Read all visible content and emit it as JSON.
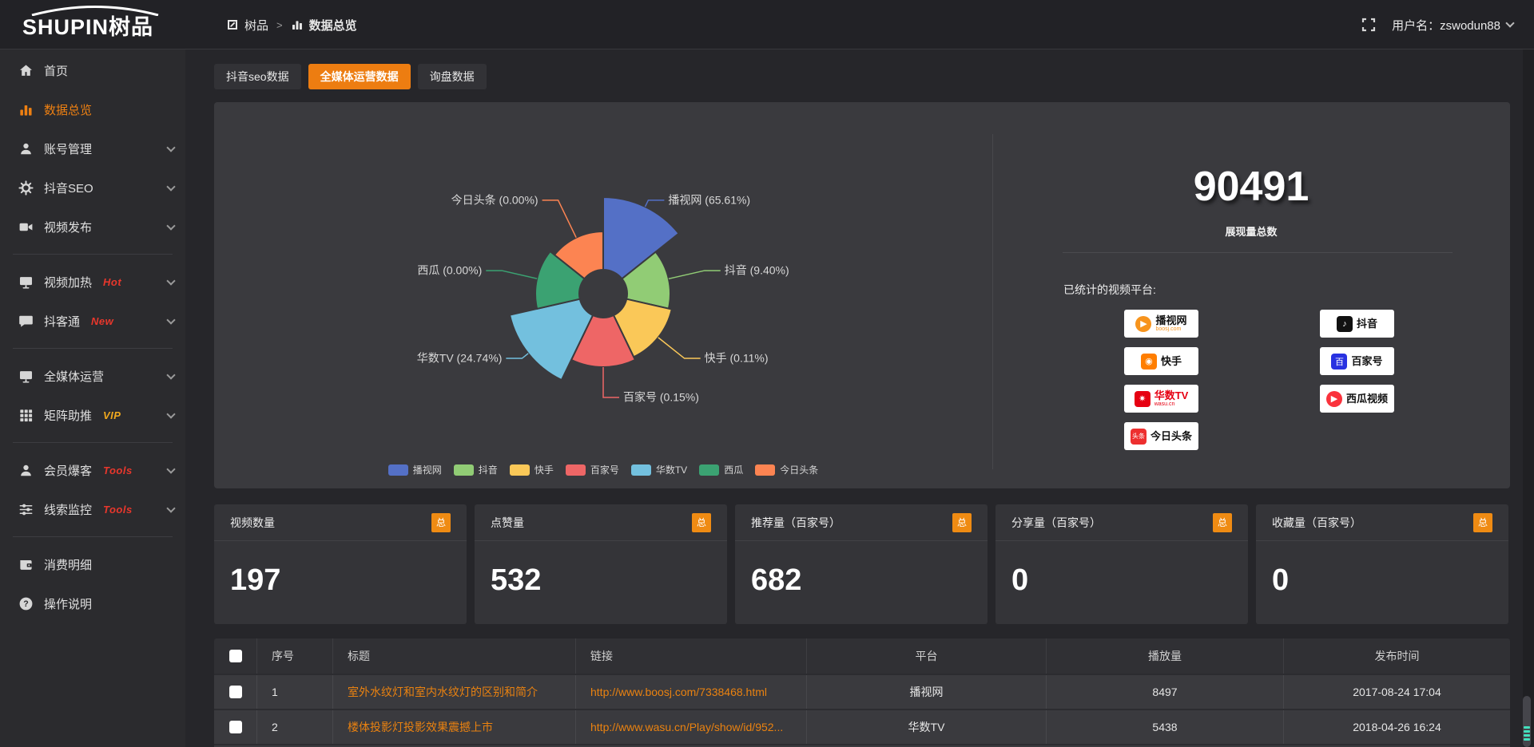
{
  "topbar": {
    "logo_text": "SHUPIN树品",
    "breadcrumb": {
      "home": "树品",
      "separator": ">",
      "current": "数据总览"
    },
    "username": "用户名：zswodun88"
  },
  "sidebar": {
    "items": [
      {
        "icon": "home-icon",
        "label": "首页"
      },
      {
        "icon": "bar-chart-icon",
        "label": "数据总览",
        "active": true
      },
      {
        "icon": "user-icon",
        "label": "账号管理",
        "chevron": true
      },
      {
        "icon": "gear-icon",
        "label": "抖音SEO",
        "chevron": true
      },
      {
        "icon": "video-camera-icon",
        "label": "视频发布",
        "chevron": true,
        "divider_after": true
      },
      {
        "icon": "monitor-icon",
        "label": "视频加热",
        "badge": "Hot",
        "badge_color": "#e8372c",
        "chevron": true
      },
      {
        "icon": "chat-icon",
        "label": "抖客通",
        "badge": "New",
        "badge_color": "#e8372c",
        "chevron": true,
        "divider_after": true
      },
      {
        "icon": "display-icon",
        "label": "全媒体运营",
        "chevron": true
      },
      {
        "icon": "grid-icon",
        "label": "矩阵助推",
        "badge": "VIP",
        "badge_color": "#f0a91e",
        "chevron": true,
        "divider_after": true
      },
      {
        "icon": "person-icon",
        "label": "会员爆客",
        "badge": "Tools",
        "badge_color": "#e8372c",
        "chevron": true
      },
      {
        "icon": "sliders-icon",
        "label": "线索监控",
        "badge": "Tools",
        "badge_color": "#e8372c",
        "chevron": true,
        "divider_after": true
      },
      {
        "icon": "wallet-icon",
        "label": "消费明细"
      },
      {
        "icon": "question-icon",
        "label": "操作说明"
      }
    ]
  },
  "tabs": [
    {
      "label": "抖音seo数据",
      "active": false
    },
    {
      "label": "全媒体运营数据",
      "active": true
    },
    {
      "label": "询盘数据",
      "active": false
    }
  ],
  "chart_data": {
    "type": "pie",
    "variant": "nightingale-rose-donut",
    "unit": "percent",
    "label_format": "{name} ({value}%)",
    "equal_angles": true,
    "start_angle_deg": 0,
    "inner_radius": 30,
    "legend_position": "bottom",
    "slices": [
      {
        "label": "播视网",
        "value": 65.61,
        "color": "#5470c6",
        "display_radius": 121
      },
      {
        "label": "抖音",
        "value": 9.4,
        "color": "#91cc75",
        "display_radius": 84
      },
      {
        "label": "快手",
        "value": 0.11,
        "color": "#fac858",
        "display_radius": 88
      },
      {
        "label": "百家号",
        "value": 0.15,
        "color": "#ee6666",
        "display_radius": 92
      },
      {
        "label": "华数TV",
        "value": 24.74,
        "color": "#73c0de",
        "display_radius": 120
      },
      {
        "label": "西瓜",
        "value": 0.0,
        "color": "#3ba272",
        "display_radius": 85
      },
      {
        "label": "今日头条",
        "value": 0.0,
        "color": "#fc8452",
        "display_radius": 78
      }
    ],
    "legend": [
      "播视网",
      "抖音",
      "快手",
      "百家号",
      "华数TV",
      "西瓜",
      "今日头条"
    ]
  },
  "summary": {
    "total": "90491",
    "caption": "展现量总数",
    "platforms_label": "已统计的视频平台:",
    "platforms": {
      "left": [
        {
          "name": "播视网",
          "sub": "boosj.com",
          "style": "boosj"
        },
        {
          "name": "快手",
          "sub": "",
          "style": "kuaishou"
        },
        {
          "name": "华数TV",
          "sub": "wasu.cn",
          "style": "wasu"
        },
        {
          "name": "今日头条",
          "sub": "",
          "style": "toutiao"
        }
      ],
      "right": [
        {
          "name": "抖音",
          "sub": "",
          "style": "douyin"
        },
        {
          "name": "百家号",
          "sub": "",
          "style": "baijiahao"
        },
        {
          "name": "西瓜视频",
          "sub": "",
          "style": "xigua"
        }
      ]
    }
  },
  "stat_cards": [
    {
      "title": "视频数量",
      "badge": "总",
      "value": "197"
    },
    {
      "title": "点赞量",
      "badge": "总",
      "value": "532"
    },
    {
      "title": "推荐量（百家号）",
      "badge": "总",
      "value": "682"
    },
    {
      "title": "分享量（百家号）",
      "badge": "总",
      "value": "0"
    },
    {
      "title": "收藏量（百家号）",
      "badge": "总",
      "value": "0"
    }
  ],
  "table": {
    "headers": [
      "序号",
      "标题",
      "链接",
      "平台",
      "播放量",
      "发布时间"
    ],
    "rows": [
      {
        "index": "1",
        "title": "室外水纹灯和室内水纹灯的区别和简介",
        "link": "http://www.boosj.com/7338468.html",
        "platform": "播视网",
        "plays": "8497",
        "publish_time": "2017-08-24 17:04"
      },
      {
        "index": "2",
        "title": "楼体投影灯投影效果震撼上市",
        "link": "http://www.wasu.cn/Play/show/id/952...",
        "platform": "华数TV",
        "plays": "5438",
        "publish_time": "2018-04-26 16:24"
      }
    ]
  },
  "colors": {
    "accent_orange": "#ed7d11",
    "badge_red": "#e8372c",
    "badge_vip": "#f0a91e",
    "link_orange": "#ea8210",
    "scrollbar_teal": "#43e0bd"
  }
}
